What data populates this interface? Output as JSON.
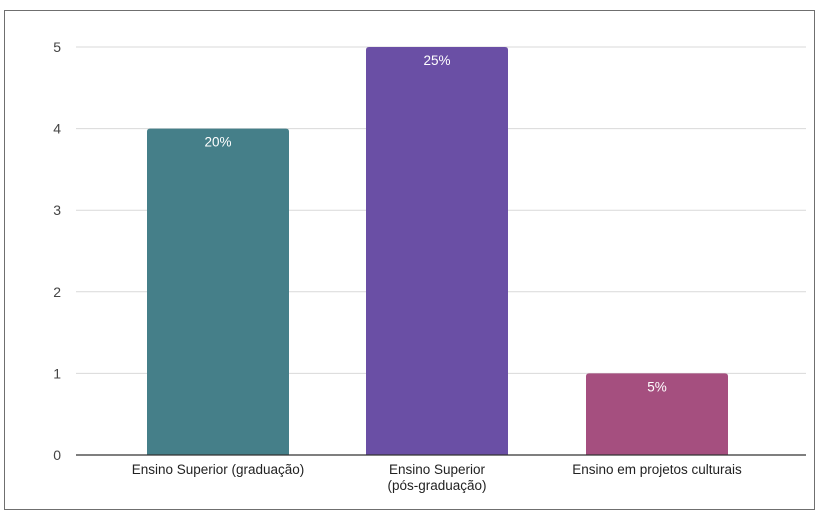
{
  "chart_data": {
    "type": "bar",
    "title": "",
    "xlabel": "",
    "ylabel": "",
    "categories": [
      [
        "Ensino Superior (graduação)"
      ],
      [
        "Ensino Superior",
        "(pós-graduação)"
      ],
      [
        "Ensino em projetos culturais"
      ]
    ],
    "values": [
      4,
      5,
      1
    ],
    "data_labels": [
      "20%",
      "25%",
      "5%"
    ],
    "colors": [
      "#457f89",
      "#6a4fa5",
      "#a54f7f"
    ],
    "ylim": [
      0,
      5
    ],
    "yticks": [
      "0",
      "1",
      "2",
      "3",
      "4",
      "5"
    ],
    "grid": true,
    "legend": "none"
  }
}
